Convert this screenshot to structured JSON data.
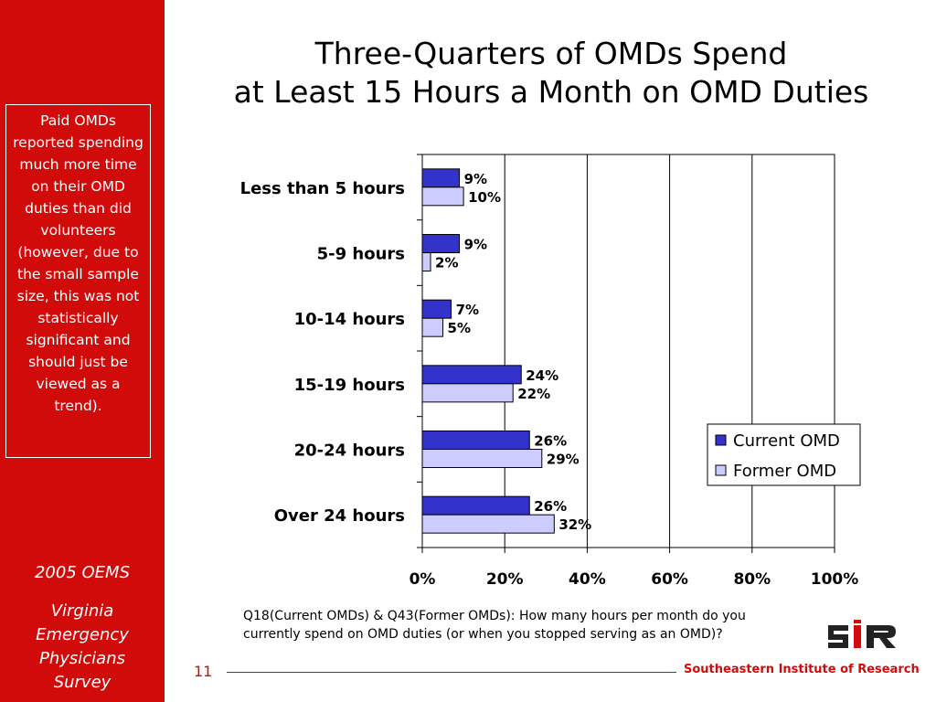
{
  "sidebar": {
    "callout": "Paid OMDs reported spending much more time on their OMD duties than did volunteers (however, due to the small sample size, this was not statistically significant and should just be viewed as a trend).",
    "year_label": "2005 OEMS",
    "survey_lines": [
      "Virginia",
      "Emergency",
      "Physicians",
      "Survey"
    ]
  },
  "slide": {
    "title_lines": [
      "Three-Quarters of OMDs Spend",
      "at Least 15 Hours a Month on OMD Duties"
    ],
    "question": "Q18(Current OMDs) & Q43(Former OMDs): How many hours per month do you currently spend on OMD duties (or when you stopped serving as an OMD)?",
    "page_number": "11",
    "institute": "Southeastern Institute of Research"
  },
  "chart_data": {
    "type": "bar",
    "orientation": "horizontal",
    "title": "",
    "categories": [
      "Less than 5 hours",
      "5-9 hours",
      "10-14 hours",
      "15-19 hours",
      "20-24 hours",
      "Over 24 hours"
    ],
    "series": [
      {
        "name": "Current OMD",
        "values": [
          9,
          9,
          7,
          24,
          26,
          26
        ],
        "labels": [
          "9%",
          "9%",
          "7%",
          "24%",
          "26%",
          "26%"
        ],
        "color": "#3333cc"
      },
      {
        "name": "Former OMD",
        "values": [
          10,
          2,
          5,
          22,
          29,
          32
        ],
        "labels": [
          "10%",
          "2%",
          "5%",
          "22%",
          "29%",
          "32%"
        ],
        "color": "#ccccff"
      }
    ],
    "xlim": [
      0,
      100
    ],
    "xticks": [
      "0%",
      "20%",
      "40%",
      "60%",
      "80%",
      "100%"
    ],
    "grid": true,
    "legend_position": "right"
  },
  "colors": {
    "brand_red": "#d10a0a",
    "text": "#000000"
  }
}
